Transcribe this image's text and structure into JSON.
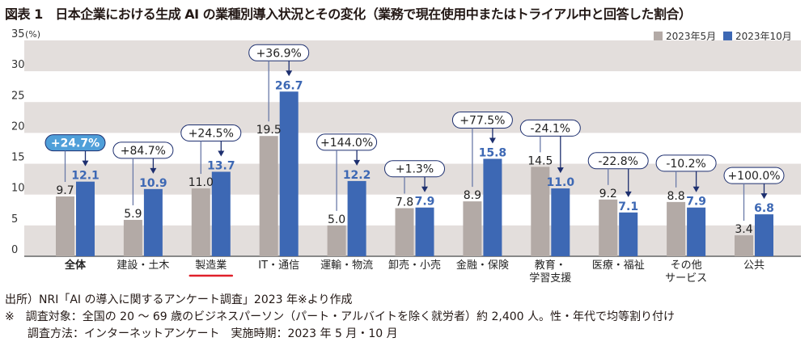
{
  "title": "図表 1　日本企業における生成 AI の業種別導入状況とその変化（業務で現在使用中またはトライアル中と回答した割合）",
  "chart_data": {
    "type": "bar",
    "title": "図表 1　日本企業における生成 AI の業種別導入状況とその変化（業務で現在使用中またはトライアル中と回答した割合）",
    "ylabel": "(%)",
    "ylim": [
      0,
      35
    ],
    "yticks": [
      0,
      5,
      10,
      15,
      20,
      25,
      30,
      35
    ],
    "grid": "alternating horizontal bands",
    "legend_position": "top-right",
    "categories": [
      "全体",
      "建設・土木",
      "製造業",
      "IT・通信",
      "運輸・物流",
      "卸売・小売",
      "金融・保険",
      "教育・\n学習支援",
      "医療・福祉",
      "その他\nサービス",
      "公共"
    ],
    "series": [
      {
        "name": "2023年5月",
        "color": "#b3aaa6",
        "values": [
          9.7,
          5.9,
          11.0,
          19.5,
          5.0,
          7.8,
          8.9,
          14.5,
          9.2,
          8.8,
          3.4
        ],
        "labels": [
          "9.7",
          "5.9",
          "11.0",
          "19.5",
          "5.0",
          "7.8",
          "8.9",
          "14.5",
          "9.2",
          "8.8",
          "3.4"
        ]
      },
      {
        "name": "2023年10月",
        "color": "#3d68b4",
        "values": [
          12.1,
          10.9,
          13.7,
          26.7,
          12.2,
          7.9,
          15.8,
          11.0,
          7.1,
          7.9,
          6.8
        ],
        "labels": [
          "12.1",
          "10.9",
          "13.7",
          "26.7",
          "12.2",
          "7.9",
          "15.8",
          "11.0",
          "7.1",
          "7.9",
          "6.8"
        ]
      }
    ],
    "change_labels": [
      "+24.7%",
      "+84.7%",
      "+24.5%",
      "+36.9%",
      "+144.0%",
      "+1.3%",
      "+77.5%",
      "-24.1%",
      "-22.8%",
      "-10.2%",
      "+100.0%"
    ],
    "highlighted_change_index": 0,
    "bold_category_index": 0,
    "underlined_category_index": 2,
    "colors": {
      "band": "#e3dedc",
      "highlight_pill": "#4f9fd9",
      "arrow": "#1d2f6f",
      "underline": "#e0202a",
      "value_blue": "#3d68b4"
    }
  },
  "notes": [
    "出所）NRI「AI の導入に関するアンケート調査」2023 年※より作成",
    "※　調査対象：全国の 20 ～ 69 歳のビジネスパーソン（パート・アルバイトを除く就労者）約 2,400 人。性・年代で均等割り付け",
    "　　調査方法：インターネットアンケート　実施時期：2023 年 5 月・10 月"
  ]
}
